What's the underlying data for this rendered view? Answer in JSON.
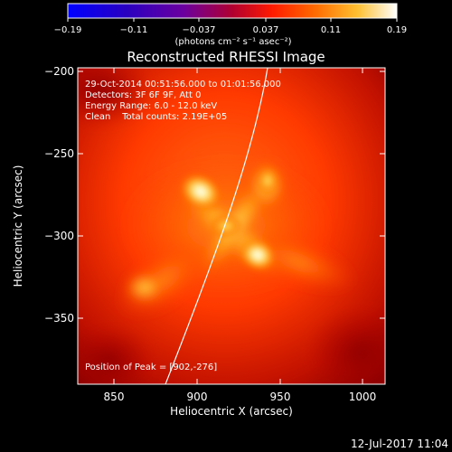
{
  "colorbar": {
    "ticks": [
      "−0.19",
      "−0.11",
      "−0.037",
      "0.037",
      "0.11",
      "0.19"
    ],
    "unit_label": "(photons cm⁻² s⁻¹ asec⁻²)"
  },
  "title": "Reconstructed RHESSI Image",
  "info": {
    "line1": "29-Oct-2014 00:51:56.000 to 01:01:56.000",
    "line2": "Detectors: 3F 6F 9F, Att 0",
    "line3": "Energy Range: 6.0 - 12.0 keV",
    "line4": "Clean    Total counts: 2.19E+05",
    "peak": "Position of Peak = [902,-276]"
  },
  "axes": {
    "xlabel": "Heliocentric X (arcsec)",
    "ylabel": "Heliocentric Y (arcsec)",
    "xticks": [
      "850",
      "900",
      "950",
      "1000"
    ],
    "yticks": [
      "−200",
      "−250",
      "−300",
      "−350"
    ]
  },
  "footer": {
    "date": "12-Jul-2017 11:04"
  },
  "colors": {
    "background": "#000000",
    "text": "#ffffff"
  }
}
